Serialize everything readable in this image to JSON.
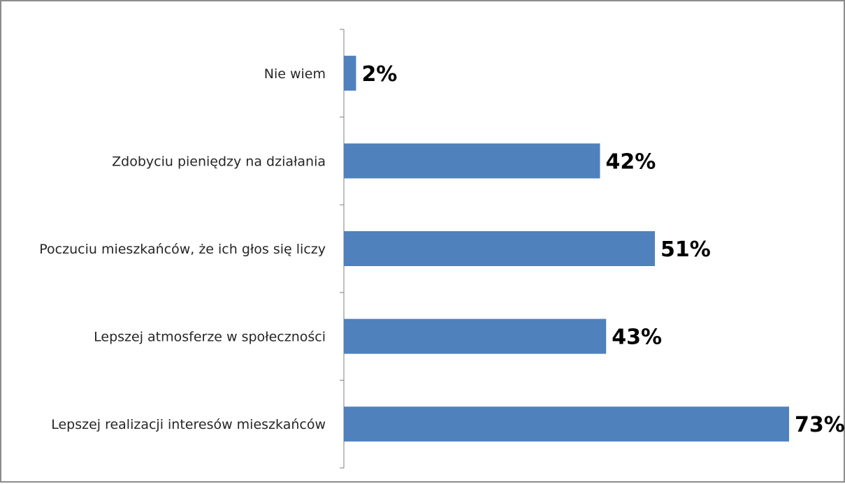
{
  "chart_data": {
    "type": "bar",
    "orientation": "horizontal",
    "categories": [
      "Nie wiem",
      "Zdobyciu pieniędzy na działania",
      "Poczuciu mieszkańców, że ich głos się liczy",
      "Lepszej atmosferze w społeczności",
      "Lepszej realizacji interesów mieszkańców"
    ],
    "values": [
      2,
      42,
      51,
      43,
      73
    ],
    "value_labels": [
      "2%",
      "42%",
      "51%",
      "43%",
      "73%"
    ],
    "xlim": [
      0,
      73
    ],
    "bar_color": "#4f81bd",
    "grid": false,
    "legend": "none"
  }
}
